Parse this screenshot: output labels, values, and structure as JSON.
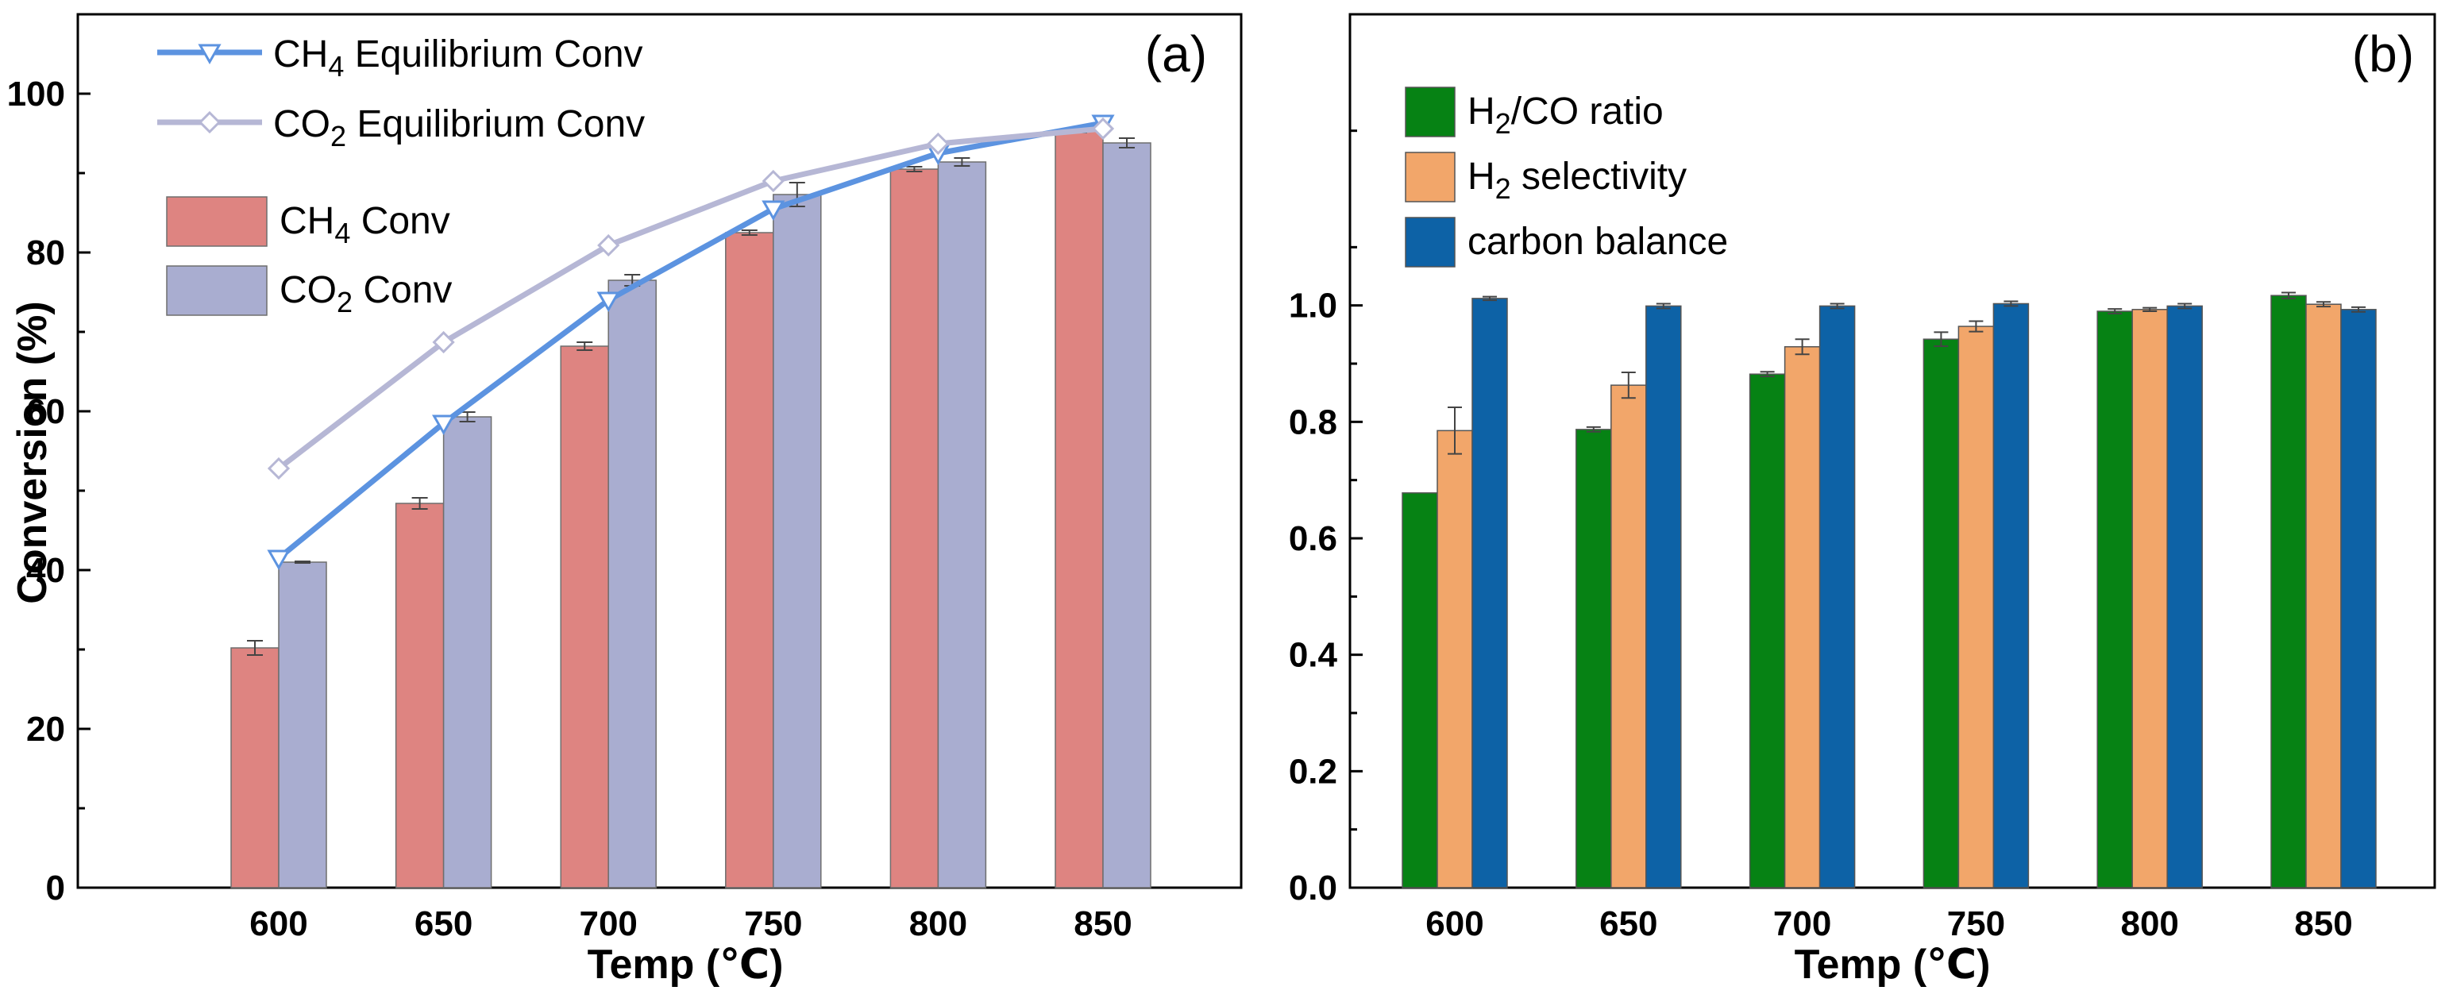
{
  "chart_data": [
    {
      "type": "bar",
      "panel_label": "(a)",
      "xlabel": "Temp (℃)",
      "ylabel": "Conversion (%)",
      "categories": [
        "600",
        "650",
        "700",
        "750",
        "800",
        "850"
      ],
      "ylim": [
        0,
        110
      ],
      "yticks": [
        "0",
        "20",
        "40",
        "60",
        "80",
        "100"
      ],
      "bar_series": [
        {
          "name": "CH4 Conv",
          "label_main": "CH",
          "label_sub": "4",
          "label_tail": " Conv",
          "color": "#de8481",
          "values": [
            30.2,
            48.4,
            68.2,
            82.5,
            90.5,
            95.4
          ],
          "errors": [
            0.9,
            0.7,
            0.5,
            0.3,
            0.3,
            0.3
          ]
        },
        {
          "name": "CO2 Conv",
          "label_main": "CO",
          "label_sub": "2",
          "label_tail": " Conv",
          "color": "#a9add0",
          "values": [
            41.0,
            59.3,
            76.5,
            87.3,
            91.4,
            93.8
          ],
          "errors": [
            0.1,
            0.6,
            0.7,
            1.5,
            0.5,
            0.6
          ]
        }
      ],
      "line_series": [
        {
          "name": "CH4 Equilibrium Conv",
          "label_main": "CH",
          "label_sub": "4",
          "label_tail": " Equilibrium Conv",
          "color": "#5c93e0",
          "marker": "triangle-down",
          "values": [
            41.5,
            58.5,
            74.0,
            85.5,
            92.5,
            96.3
          ]
        },
        {
          "name": "CO2 Equilibrium Conv",
          "label_main": "CO",
          "label_sub": "2",
          "label_tail": " Equilibrium Conv",
          "color": "#b6b7d5",
          "marker": "diamond",
          "values": [
            52.8,
            68.7,
            80.9,
            89.0,
            93.7,
            95.6
          ]
        }
      ]
    },
    {
      "type": "bar",
      "panel_label": "(b)",
      "xlabel": "Temp (℃)",
      "ylabel": "",
      "categories": [
        "600",
        "650",
        "700",
        "750",
        "800",
        "850"
      ],
      "ylim": [
        0,
        1.5
      ],
      "yticks": [
        "0.0",
        "0.2",
        "0.4",
        "0.6",
        "0.8",
        "1.0"
      ],
      "bar_series": [
        {
          "name": "H2/CO ratio",
          "label_main": "H",
          "label_sub": "2",
          "label_tail": "/CO ratio",
          "color": "#068214",
          "values": [
            0.678,
            0.787,
            0.882,
            0.942,
            0.99,
            1.017
          ],
          "errors": [
            0.0,
            0.004,
            0.004,
            0.012,
            0.004,
            0.005
          ]
        },
        {
          "name": "H2 selectivity",
          "label_main": "H",
          "label_sub": "2",
          "label_tail": " selectivity",
          "color": "#f2a66a",
          "values": [
            0.785,
            0.863,
            0.929,
            0.964,
            0.993,
            1.002
          ],
          "errors": [
            0.04,
            0.022,
            0.013,
            0.009,
            0.003,
            0.004
          ]
        },
        {
          "name": "carbon balance",
          "label_main": "carbon balance",
          "label_sub": "",
          "label_tail": "",
          "color": "#0d62a6",
          "values": [
            1.012,
            0.999,
            0.999,
            1.003,
            0.999,
            0.993
          ],
          "errors": [
            0.003,
            0.004,
            0.004,
            0.004,
            0.004,
            0.004
          ]
        }
      ]
    }
  ]
}
